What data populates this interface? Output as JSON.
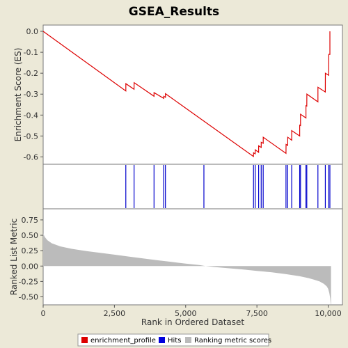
{
  "chart_data": {
    "type": "line",
    "title": "GSEA_Results",
    "xlabel": "Rank in Ordered Dataset",
    "x_ticks": [
      "0",
      "2,500",
      "5,000",
      "7,500",
      "10,000"
    ],
    "xlim": [
      0,
      10500
    ],
    "top_panel": {
      "ylabel": "Enrichment Score (ES)",
      "ylim": [
        -0.635,
        0.03
      ],
      "y_ticks": [
        "0.0",
        "-0.1",
        "-0.2",
        "-0.3",
        "-0.4",
        "-0.5",
        "-0.6"
      ],
      "series": [
        {
          "name": "enrichment_profile",
          "color": "#dd0000",
          "points": [
            [
              0,
              0.0
            ],
            [
              2900,
              -0.285
            ],
            [
              2901,
              -0.25
            ],
            [
              3190,
              -0.277
            ],
            [
              3191,
              -0.245
            ],
            [
              3890,
              -0.31
            ],
            [
              3891,
              -0.293
            ],
            [
              4230,
              -0.32
            ],
            [
              4231,
              -0.31
            ],
            [
              4290,
              -0.315
            ],
            [
              4291,
              -0.298
            ],
            [
              7380,
              -0.598
            ],
            [
              7381,
              -0.58
            ],
            [
              7440,
              -0.585
            ],
            [
              7441,
              -0.566
            ],
            [
              7560,
              -0.578
            ],
            [
              7561,
              -0.547
            ],
            [
              7650,
              -0.555
            ],
            [
              7651,
              -0.53
            ],
            [
              7720,
              -0.535
            ],
            [
              7721,
              -0.506
            ],
            [
              8520,
              -0.583
            ],
            [
              8521,
              -0.54
            ],
            [
              8580,
              -0.545
            ],
            [
              8581,
              -0.506
            ],
            [
              8720,
              -0.52
            ],
            [
              8721,
              -0.474
            ],
            [
              9000,
              -0.5
            ],
            [
              9001,
              -0.448
            ],
            [
              9030,
              -0.45
            ],
            [
              9031,
              -0.396
            ],
            [
              9220,
              -0.414
            ],
            [
              9221,
              -0.355
            ],
            [
              9250,
              -0.357
            ],
            [
              9251,
              -0.3
            ],
            [
              9640,
              -0.337
            ],
            [
              9641,
              -0.267
            ],
            [
              9900,
              -0.29
            ],
            [
              9901,
              -0.2
            ],
            [
              10020,
              -0.21
            ],
            [
              10021,
              -0.11
            ],
            [
              10060,
              -0.11
            ],
            [
              10061,
              0.0
            ]
          ]
        }
      ]
    },
    "hits_panel": {
      "label": "Hits",
      "color": "#0000cc",
      "positions": [
        2900,
        3190,
        3890,
        4230,
        4290,
        5640,
        7380,
        7440,
        7560,
        7650,
        7720,
        8520,
        8580,
        8720,
        9000,
        9030,
        9220,
        9250,
        9640,
        9900,
        10020,
        10060
      ]
    },
    "bottom_panel": {
      "ylabel": "Ranked List Metric",
      "ylim": [
        -0.63,
        0.93
      ],
      "y_ticks": [
        "0.75",
        "0.50",
        "0.25",
        "0.00",
        "-0.25",
        "-0.50"
      ],
      "series": [
        {
          "name": "Ranking metric scores",
          "color": "#bbbbbb",
          "points": [
            [
              0,
              0.53
            ],
            [
              60,
              0.47
            ],
            [
              150,
              0.42
            ],
            [
              300,
              0.37
            ],
            [
              600,
              0.32
            ],
            [
              1000,
              0.28
            ],
            [
              1500,
              0.245
            ],
            [
              2000,
              0.215
            ],
            [
              2500,
              0.185
            ],
            [
              3000,
              0.155
            ],
            [
              3500,
              0.125
            ],
            [
              4000,
              0.095
            ],
            [
              4500,
              0.067
            ],
            [
              5000,
              0.04
            ],
            [
              5500,
              0.015
            ],
            [
              5700,
              0.0
            ],
            [
              6000,
              -0.015
            ],
            [
              6500,
              -0.035
            ],
            [
              7000,
              -0.055
            ],
            [
              7500,
              -0.08
            ],
            [
              8000,
              -0.1
            ],
            [
              8500,
              -0.13
            ],
            [
              9000,
              -0.165
            ],
            [
              9300,
              -0.195
            ],
            [
              9500,
              -0.22
            ],
            [
              9700,
              -0.25
            ],
            [
              9850,
              -0.29
            ],
            [
              9950,
              -0.33
            ],
            [
              10000,
              -0.37
            ],
            [
              10040,
              -0.44
            ],
            [
              10070,
              -0.52
            ],
            [
              10090,
              -0.62
            ],
            [
              10100,
              -0.62
            ]
          ]
        }
      ]
    },
    "legend": {
      "placement": "bottom",
      "items": [
        {
          "label": "enrichment_profile",
          "color": "#dd0000"
        },
        {
          "label": "Hits",
          "color": "#0000dd"
        },
        {
          "label": "Ranking metric scores",
          "color": "#bbbbbb"
        }
      ]
    }
  }
}
